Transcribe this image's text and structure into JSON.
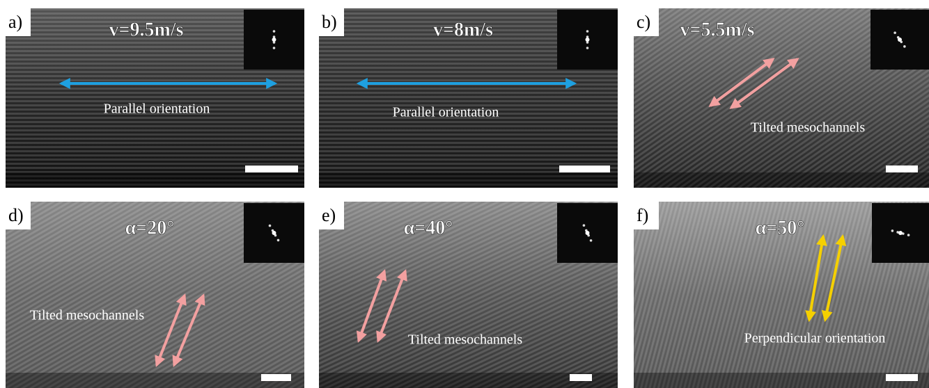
{
  "panels": [
    {
      "label": "a)",
      "heading": "v=9.5m/s",
      "caption": "Parallel orientation"
    },
    {
      "label": "b)",
      "heading": "v=8m/s",
      "caption": "Parallel orientation"
    },
    {
      "label": "c)",
      "heading": "v=5.5m/s",
      "caption": "Tilted mesochannels"
    },
    {
      "label": "d)",
      "heading": "α=20°",
      "caption": "Tilted mesochannels"
    },
    {
      "label": "e)",
      "heading": "α=40°",
      "caption": "Tilted mesochannels"
    },
    {
      "label": "f)",
      "heading": "α=50°",
      "caption": "Perpendicular orientation"
    }
  ]
}
